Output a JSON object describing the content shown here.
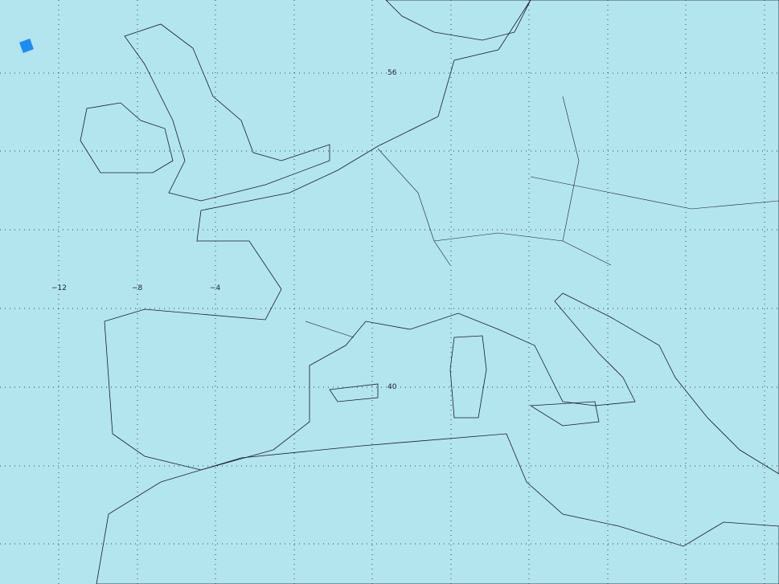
{
  "map": {
    "background_color": "#b3e5ee",
    "coastline_color": "#1a1a2a",
    "grid": {
      "style": "dotted",
      "color": "#334455",
      "lon_step_deg": 4,
      "lat_step_deg": 4
    },
    "longitude_labels": [
      {
        "value": -12,
        "text": "−12"
      },
      {
        "value": -8,
        "text": "−8"
      },
      {
        "value": -4,
        "text": "−4"
      }
    ],
    "latitude_labels": [
      {
        "value": 56,
        "text": "56"
      },
      {
        "value": 40,
        "text": "40"
      }
    ],
    "swath_colors": [
      "#0a3cf0",
      "#1e8cf5",
      "#5fb4f7",
      "#7a6cf5",
      "#5a30f0",
      "#c040f0",
      "#1fc0f5",
      "#9a55f2"
    ]
  }
}
